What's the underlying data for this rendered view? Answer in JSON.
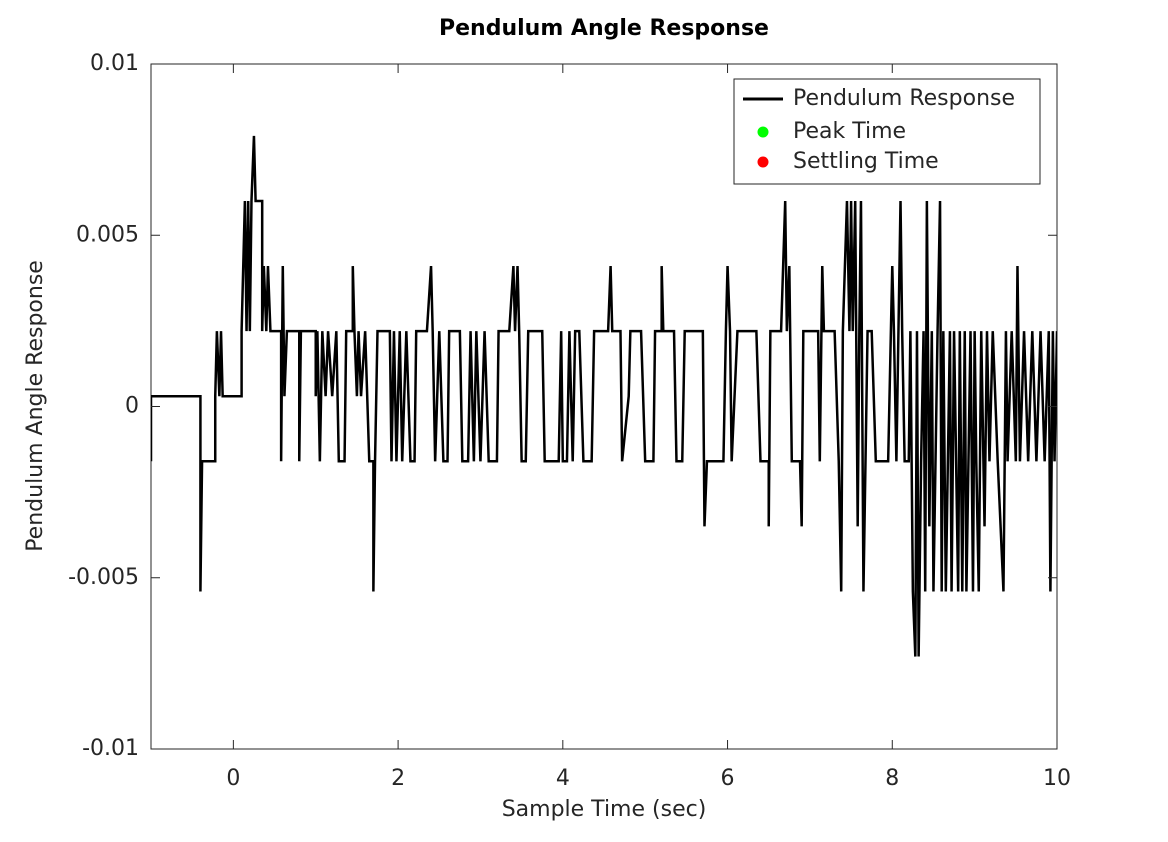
{
  "chart_data": {
    "type": "line",
    "title": "Pendulum Angle Response",
    "x_label": "Sample Time (sec)",
    "y_label": "Pendulum Angle Response",
    "xlim": [
      -1,
      10
    ],
    "xticks": [
      0,
      2,
      4,
      6,
      8,
      10
    ],
    "ylim": [
      -0.01,
      0.01
    ],
    "yticks": [
      -0.01,
      -0.005,
      0,
      0.005,
      0.01
    ],
    "grid": false,
    "legend": "northeast",
    "series": [
      {
        "name": "Pendulum Response",
        "color": "#000000",
        "x": [
          -1,
          -1,
          -0.4,
          -0.4,
          -0.38,
          -0.22,
          -0.22,
          -0.2,
          -0.17,
          -0.15,
          -0.13,
          0.1,
          0.1,
          0.14,
          0.16,
          0.18,
          0.2,
          0.22,
          0.25,
          0.27,
          0.35,
          0.35,
          0.37,
          0.4,
          0.42,
          0.45,
          0.58,
          0.58,
          0.6,
          0.62,
          0.65,
          0.8,
          0.8,
          0.82,
          1,
          1,
          1.02,
          1.05,
          1.08,
          1.12,
          1.15,
          1.2,
          1.25,
          1.28,
          1.35,
          1.37,
          1.45,
          1.45,
          1.47,
          1.5,
          1.52,
          1.55,
          1.6,
          1.65,
          1.7,
          1.7,
          1.72,
          1.75,
          1.9,
          1.92,
          1.95,
          1.98,
          2.02,
          2.05,
          2.1,
          2.15,
          2.2,
          2.22,
          2.35,
          2.4,
          2.42,
          2.45,
          2.5,
          2.55,
          2.6,
          2.62,
          2.75,
          2.78,
          2.85,
          2.88,
          2.92,
          2.95,
          3,
          3.05,
          3.1,
          3.2,
          3.22,
          3.35,
          3.4,
          3.42,
          3.45,
          3.47,
          3.5,
          3.55,
          3.58,
          3.75,
          3.78,
          3.95,
          3.98,
          4,
          4.05,
          4.08,
          4.12,
          4.15,
          4.2,
          4.25,
          4.35,
          4.38,
          4.55,
          4.58,
          4.6,
          4.7,
          4.72,
          4.8,
          4.82,
          4.95,
          5,
          5.1,
          5.12,
          5.2,
          5.2,
          5.22,
          5.35,
          5.38,
          5.45,
          5.48,
          5.7,
          5.72,
          5.75,
          5.95,
          5.98,
          6,
          6.03,
          6.05,
          6.12,
          6.35,
          6.4,
          6.5,
          6.5,
          6.52,
          6.65,
          6.7,
          6.72,
          6.75,
          6.78,
          6.88,
          6.9,
          6.92,
          7.1,
          7.12,
          7.15,
          7.17,
          7.3,
          7.35,
          7.38,
          7.4,
          7.45,
          7.48,
          7.5,
          7.52,
          7.55,
          7.58,
          7.6,
          7.62,
          7.65,
          7.7,
          7.75,
          7.8,
          7.95,
          8,
          8.02,
          8.05,
          8.1,
          8.12,
          8.15,
          8.2,
          8.22,
          8.25,
          8.28,
          8.3,
          8.32,
          8.35,
          8.38,
          8.4,
          8.42,
          8.45,
          8.48,
          8.5,
          8.55,
          8.58,
          8.6,
          8.62,
          8.65,
          8.7,
          8.72,
          8.75,
          8.8,
          8.82,
          8.85,
          8.88,
          8.9,
          8.95,
          8.98,
          9,
          9.02,
          9.05,
          9.08,
          9.12,
          9.15,
          9.18,
          9.22,
          9.28,
          9.35,
          9.38,
          9.4,
          9.45,
          9.5,
          9.52,
          9.55,
          9.6,
          9.65,
          9.7,
          9.75,
          9.8,
          9.85,
          9.9,
          9.92,
          9.95,
          9.97,
          10
        ],
        "values": [
          -0.0016,
          0.0003,
          0.0003,
          -0.0054,
          -0.0016,
          -0.0016,
          0.0003,
          0.0022,
          0.0003,
          0.0022,
          0.0003,
          0.0003,
          0.0022,
          0.006,
          0.0022,
          0.006,
          0.0022,
          0.006,
          0.0079,
          0.006,
          0.006,
          0.0022,
          0.0041,
          0.0022,
          0.0041,
          0.0022,
          0.0022,
          -0.0016,
          0.0041,
          0.0003,
          0.0022,
          0.0022,
          -0.0016,
          0.0022,
          0.0022,
          0.0003,
          0.0022,
          -0.0016,
          0.0022,
          0.0003,
          0.0022,
          0.0003,
          0.0022,
          -0.0016,
          -0.0016,
          0.0022,
          0.0022,
          0.0041,
          0.0022,
          0.0003,
          0.0022,
          0.0003,
          0.0022,
          -0.0016,
          -0.0016,
          -0.0054,
          -0.0016,
          0.0022,
          0.0022,
          -0.0016,
          0.0022,
          -0.0016,
          0.0022,
          -0.0016,
          0.0022,
          -0.0016,
          -0.0016,
          0.0022,
          0.0022,
          0.0041,
          0.0022,
          -0.0016,
          0.0022,
          -0.0016,
          -0.0016,
          0.0022,
          0.0022,
          -0.0016,
          -0.0016,
          0.0022,
          -0.0016,
          0.0022,
          -0.0016,
          0.0022,
          -0.0016,
          -0.0016,
          0.0022,
          0.0022,
          0.0041,
          0.0022,
          0.0041,
          0.0022,
          -0.0016,
          -0.0016,
          0.0022,
          0.0022,
          -0.0016,
          -0.0016,
          0.0022,
          -0.0016,
          -0.0016,
          0.0022,
          -0.0016,
          0.0022,
          0.0022,
          -0.0016,
          -0.0016,
          0.0022,
          0.0022,
          0.0041,
          0.0022,
          0.0022,
          -0.0016,
          0.0003,
          0.0022,
          0.0022,
          -0.0016,
          -0.0016,
          0.0022,
          0.0022,
          0.0041,
          0.0022,
          0.0022,
          -0.0016,
          -0.0016,
          0.0022,
          0.0022,
          -0.0035,
          -0.0016,
          -0.0016,
          0.0022,
          0.0041,
          0.0022,
          -0.0016,
          0.0022,
          0.0022,
          -0.0016,
          -0.0016,
          -0.0035,
          0.0022,
          0.0022,
          0.006,
          0.0022,
          0.0041,
          -0.0016,
          -0.0016,
          -0.0035,
          0.0022,
          0.0022,
          -0.0016,
          0.0041,
          0.0022,
          0.0022,
          -0.0016,
          -0.0054,
          0.0022,
          0.006,
          0.0022,
          0.006,
          0.0022,
          0.006,
          -0.0035,
          0.0022,
          0.006,
          -0.0054,
          0.0022,
          0.0022,
          -0.0016,
          -0.0016,
          0.0041,
          0.0022,
          -0.0016,
          0.006,
          0.0022,
          -0.0016,
          -0.0016,
          0.0022,
          -0.0054,
          -0.0073,
          0.0022,
          -0.0073,
          -0.0016,
          0.0022,
          -0.0054,
          0.006,
          -0.0035,
          0.0022,
          -0.0054,
          0.0022,
          0.006,
          -0.0054,
          0.0022,
          -0.0054,
          0.0022,
          -0.0054,
          0.0022,
          -0.0054,
          0.0022,
          -0.0054,
          0.0022,
          -0.0054,
          0.0022,
          -0.0054,
          0.0022,
          -0.0016,
          -0.0054,
          0.0022,
          -0.0035,
          0.0022,
          -0.0016,
          0.0022,
          -0.0016,
          -0.0054,
          0.0022,
          -0.0016,
          0.0022,
          -0.0016,
          0.0041,
          -0.0016,
          0.0022,
          -0.0016,
          0.0022,
          -0.0016,
          0.0022,
          -0.0016,
          0.0022,
          -0.0054,
          0.0022,
          -0.0016,
          0.0022
        ]
      },
      {
        "name": "Peak Time",
        "color": "#00ff00",
        "x": [],
        "values": []
      },
      {
        "name": "Settling Time",
        "color": "#ff0000",
        "x": [],
        "values": []
      }
    ]
  }
}
